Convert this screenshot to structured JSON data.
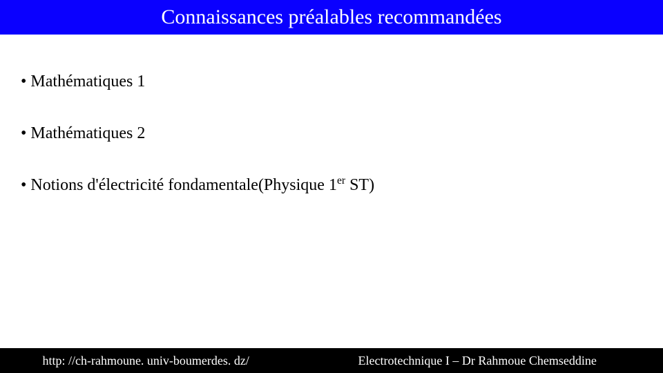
{
  "colors": {
    "header_bg": "#0a00ff",
    "header_text": "#ffffff",
    "body_bg": "#ffffff",
    "body_text": "#000000",
    "footer_bg": "#000000",
    "footer_text": "#ffffff"
  },
  "header": {
    "title": "Connaissances préalables recommandées"
  },
  "content": {
    "items": [
      {
        "text": "Mathématiques 1",
        "has_sup": false
      },
      {
        "text": "Mathématiques 2",
        "has_sup": false
      },
      {
        "prefix": "Notions d'électricité fondamentale(Physique 1",
        "sup": "er",
        "suffix": " ST)",
        "has_sup": true
      }
    ]
  },
  "footer": {
    "left": "http: //ch-rahmoune. univ-boumerdes. dz/",
    "right": "Electrotechnique I – Dr Rahmoue Chemseddine"
  }
}
